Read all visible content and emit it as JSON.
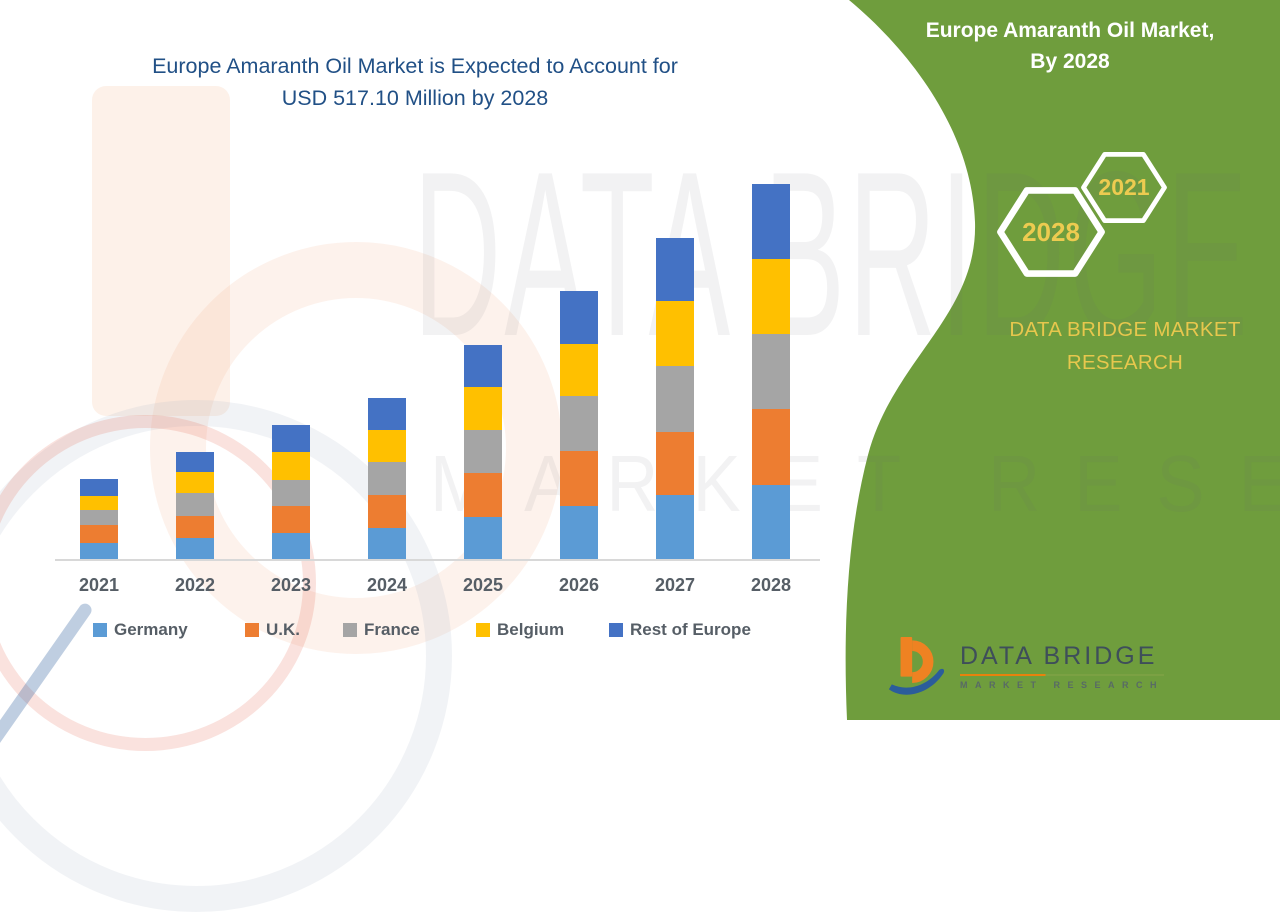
{
  "title": {
    "line1": "Europe Amaranth Oil Market is Expected to Account for",
    "line2": "USD 517.10 Million by 2028"
  },
  "watermark": {
    "line1": "DATA BRIDGE",
    "line2": "MARKET RESEARCH"
  },
  "side_panel": {
    "heading_line1": "Europe Amaranth Oil Market,",
    "heading_line2": "By 2028",
    "hexagons": [
      {
        "label": "2028"
      },
      {
        "label": "2021"
      }
    ],
    "brand_line1": "DATA BRIDGE MARKET",
    "brand_line2": "RESEARCH",
    "panel_color": "#6F9D3D",
    "hex_text_color": "#EDCB50"
  },
  "logo": {
    "name": "DATA BRIDGE",
    "subtitle": "MARKET RESEARCH"
  },
  "chart_data": {
    "type": "bar",
    "stacked": true,
    "unit": "USD Million",
    "title": "Europe Amaranth Oil Market is Expected to Account for USD 517.10 Million by 2028",
    "categories": [
      "2021",
      "2022",
      "2023",
      "2024",
      "2025",
      "2026",
      "2027",
      "2028"
    ],
    "series": [
      {
        "name": "Germany",
        "color": "#5B9BD5",
        "values": [
          22.1,
          29.0,
          36.4,
          42.8,
          58.0,
          73.6,
          87.9,
          102.7
        ]
      },
      {
        "name": "U.K.",
        "color": "#ED7D31",
        "values": [
          25.2,
          30.8,
          36.3,
          46.1,
          60.7,
          74.9,
          87.4,
          103.5
        ]
      },
      {
        "name": "France",
        "color": "#A5A5A5",
        "values": [
          19.8,
          31.3,
          35.9,
          45.0,
          58.9,
          75.9,
          90.3,
          103.5
        ]
      },
      {
        "name": "Belgium",
        "color": "#FFC000",
        "values": [
          20.2,
          29.0,
          39.0,
          43.7,
          58.9,
          72.7,
          89.7,
          104.3
        ]
      },
      {
        "name": "Rest of Europe",
        "color": "#4472C4",
        "values": [
          22.5,
          28.0,
          36.9,
          44.6,
          58.8,
          73.1,
          86.9,
          103.1
        ]
      }
    ],
    "totals": [
      109.8,
      148.1,
      184.5,
      222.2,
      295.3,
      370.2,
      442.2,
      517.1
    ],
    "annotated_total_2028": 517.1,
    "xlabel": "",
    "ylabel": "",
    "y_axis_visible": false,
    "grid": false,
    "legend_position": "bottom"
  }
}
